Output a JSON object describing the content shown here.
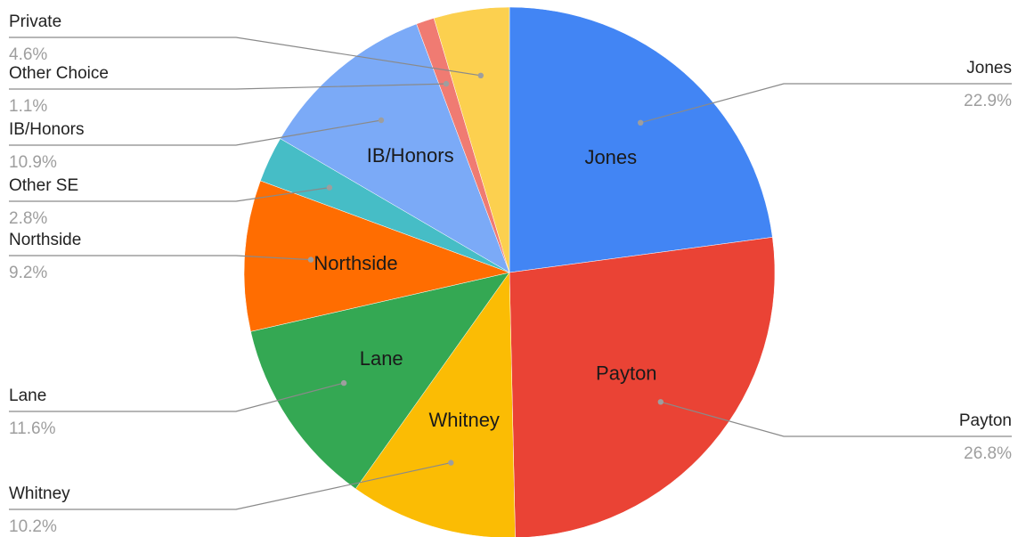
{
  "chart_data": {
    "type": "pie",
    "title": "",
    "slices": [
      {
        "name": "Jones",
        "value": 22.9,
        "label": "22.9%",
        "color": "#4285f4",
        "inner_label": true,
        "side": "right"
      },
      {
        "name": "Payton",
        "value": 26.8,
        "label": "26.8%",
        "color": "#ea4335",
        "inner_label": true,
        "side": "right"
      },
      {
        "name": "Whitney",
        "value": 10.2,
        "label": "10.2%",
        "color": "#fbbc04",
        "inner_label": true,
        "side": "left"
      },
      {
        "name": "Lane",
        "value": 11.6,
        "label": "11.6%",
        "color": "#34a853",
        "inner_label": true,
        "side": "left"
      },
      {
        "name": "Northside",
        "value": 9.2,
        "label": "9.2%",
        "color": "#ff6d01",
        "inner_label": true,
        "side": "left"
      },
      {
        "name": "Other SE",
        "value": 2.8,
        "label": "2.8%",
        "color": "#46bdc6",
        "inner_label": false,
        "side": "left"
      },
      {
        "name": "IB/Honors",
        "value": 10.9,
        "label": "10.9%",
        "color": "#7baaf7",
        "inner_label": true,
        "side": "left"
      },
      {
        "name": "Other Choice",
        "value": 1.1,
        "label": "1.1%",
        "color": "#f07b72",
        "inner_label": false,
        "side": "left"
      },
      {
        "name": "Private",
        "value": 4.6,
        "label": "4.6%",
        "color": "#fcd04f",
        "inner_label": false,
        "side": "left"
      }
    ],
    "legend": "none",
    "start_angle": "12 o'clock",
    "direction": "clockwise"
  }
}
